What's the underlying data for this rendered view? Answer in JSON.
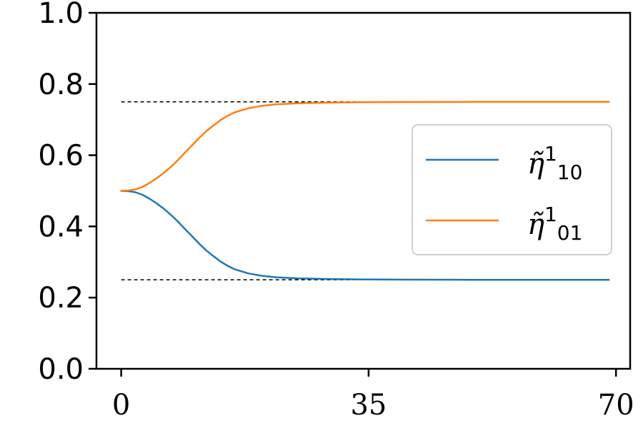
{
  "chart_data": {
    "type": "line",
    "title": "",
    "xlabel": "",
    "ylabel": "",
    "xlim": [
      -3.5,
      72.0
    ],
    "ylim": [
      0,
      1
    ],
    "xticks": [
      0,
      35,
      70
    ],
    "xtick_labels": [
      "0",
      "35",
      "70"
    ],
    "yticks": [
      0.0,
      0.2,
      0.4,
      0.6,
      0.8,
      1.0
    ],
    "ytick_labels": [
      "0.0",
      "0.2",
      "0.4",
      "0.6",
      "0.8",
      "1.0"
    ],
    "grid": false,
    "legend_position": "center-right",
    "reference_lines": [
      {
        "y": 0.75,
        "x_range": [
          0,
          69
        ],
        "style": "dashed",
        "color": "#000000"
      },
      {
        "y": 0.25,
        "x_range": [
          0,
          69
        ],
        "style": "dashed",
        "color": "#000000"
      }
    ],
    "series": [
      {
        "name": "η̃¹₁₀",
        "legend_label": {
          "base": "η̃",
          "sup": "1",
          "sub": "10"
        },
        "color": "#1f77b4",
        "x": [
          0,
          1,
          2,
          3,
          4,
          5,
          6,
          7,
          8,
          9,
          10,
          11,
          12,
          13,
          14,
          15,
          16,
          18,
          20,
          22,
          25,
          30,
          35,
          40,
          50,
          60,
          69
        ],
        "y": [
          0.5,
          0.499,
          0.496,
          0.489,
          0.478,
          0.465,
          0.45,
          0.433,
          0.414,
          0.393,
          0.373,
          0.352,
          0.333,
          0.317,
          0.302,
          0.29,
          0.28,
          0.268,
          0.261,
          0.257,
          0.254,
          0.252,
          0.251,
          0.2505,
          0.2502,
          0.2501,
          0.25
        ]
      },
      {
        "name": "η̃¹₀₁",
        "legend_label": {
          "base": "η̃",
          "sup": "1",
          "sub": "01"
        },
        "color": "#ff7f0e",
        "x": [
          0,
          1,
          2,
          3,
          4,
          5,
          6,
          7,
          8,
          9,
          10,
          11,
          12,
          13,
          14,
          15,
          16,
          18,
          20,
          22,
          25,
          30,
          35,
          40,
          50,
          60,
          69
        ],
        "y": [
          0.5,
          0.501,
          0.504,
          0.511,
          0.522,
          0.535,
          0.55,
          0.567,
          0.586,
          0.607,
          0.627,
          0.648,
          0.667,
          0.683,
          0.698,
          0.71,
          0.72,
          0.732,
          0.739,
          0.743,
          0.746,
          0.748,
          0.749,
          0.7495,
          0.7498,
          0.7499,
          0.75
        ]
      }
    ]
  }
}
